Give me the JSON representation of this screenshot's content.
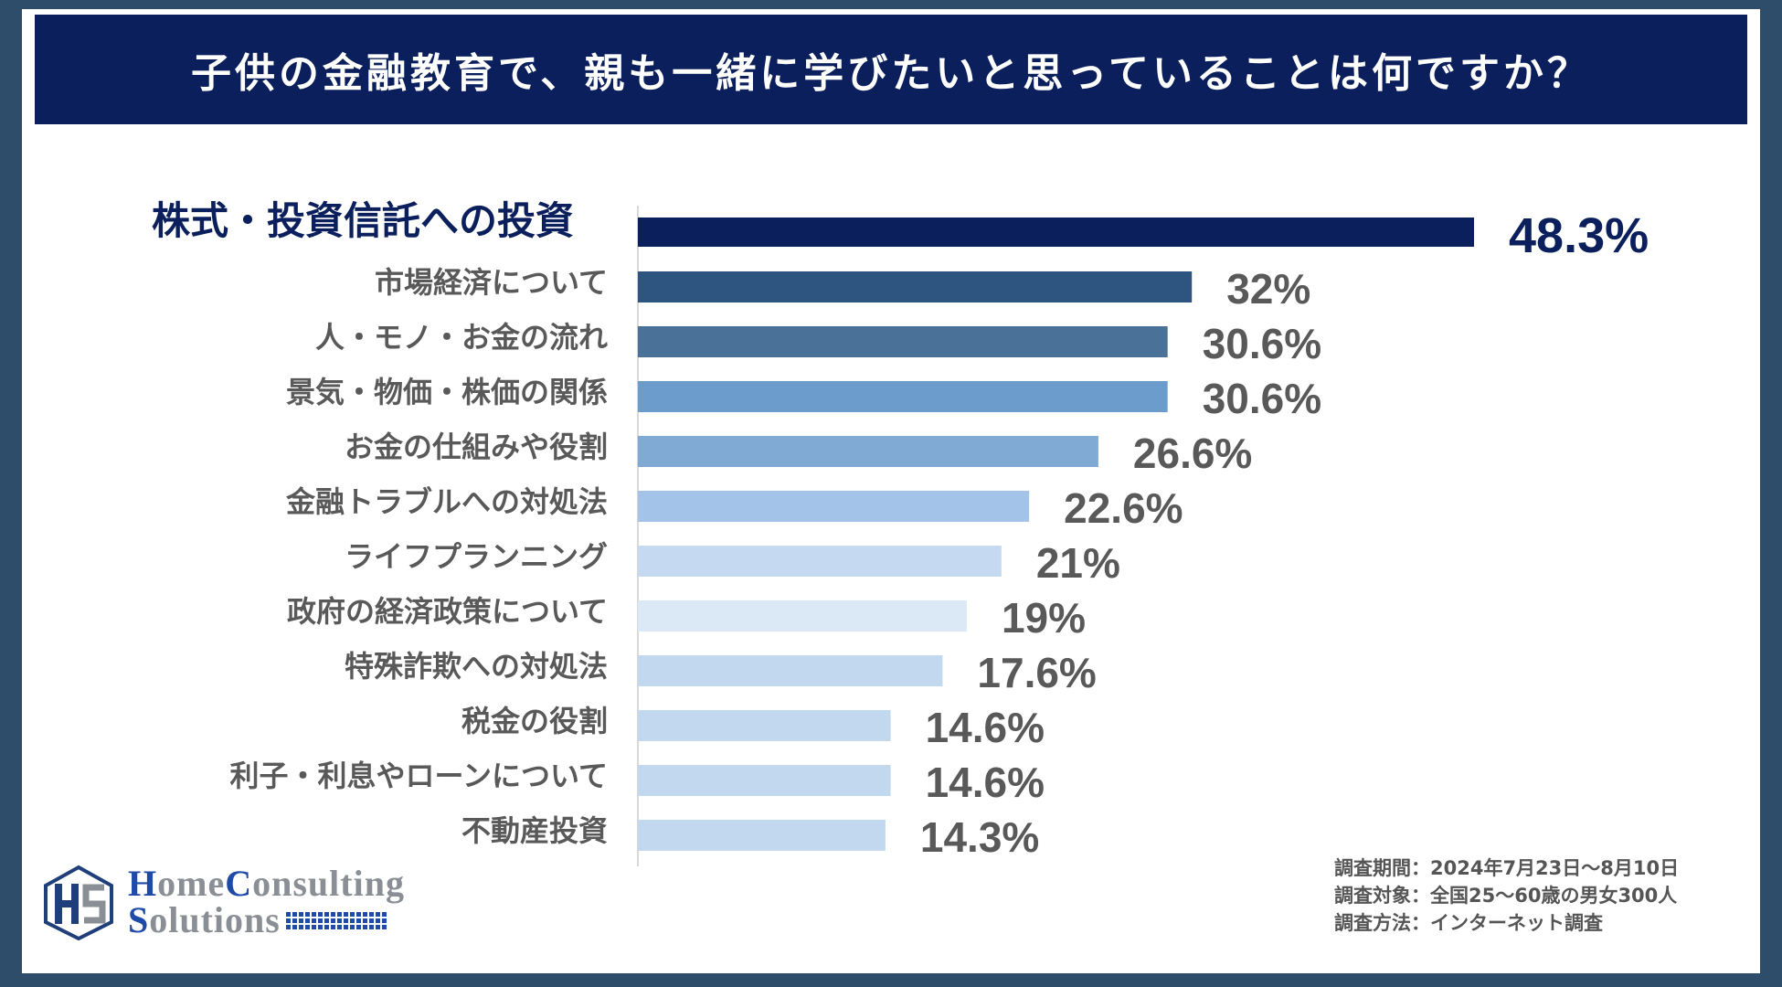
{
  "title": "子供の金融教育で、親も一緒に学びたいと思っていることは何ですか？",
  "chart_data": {
    "type": "bar",
    "orientation": "horizontal",
    "title": "子供の金融教育で、親も一緒に学びたいと思っていることは何ですか？",
    "unit": "%",
    "xlim": [
      0,
      50
    ],
    "categories": [
      "株式・投資信託への投資",
      "市場経済について",
      "人・モノ・お金の流れ",
      "景気・物価・株価の関係",
      "お金の仕組みや役割",
      "金融トラブルへの対処法",
      "ライフプランニング",
      "政府の経済政策について",
      "特殊詐欺への対処法",
      "税金の役割",
      "利子・利息やローンについて",
      "不動産投資"
    ],
    "values": [
      48.3,
      32,
      30.6,
      30.6,
      26.6,
      22.6,
      21,
      19,
      17.6,
      14.6,
      14.6,
      14.3
    ],
    "value_labels": [
      "48.3%",
      "32%",
      "30.6%",
      "30.6%",
      "26.6%",
      "22.6%",
      "21%",
      "19%",
      "17.6%",
      "14.6%",
      "14.6%",
      "14.3%"
    ],
    "bar_colors": [
      "#0b1f5c",
      "#2e5580",
      "#4a7198",
      "#6b9ccc",
      "#80a9d4",
      "#a3c4e8",
      "#c5daf0",
      "#dbe8f6",
      "#c2d8ef",
      "#c2d8ef",
      "#c2d8ef",
      "#c2d8ef"
    ]
  },
  "logo": {
    "line1_cap1": "H",
    "line1_rest1": "ome",
    "line1_cap2": "C",
    "line1_rest2": "onsulting",
    "line2_cap": "S",
    "line2_rest": "olutions"
  },
  "survey_notes": [
    "調査期間：2024年7月23日～8月10日",
    "調査対象：全国25～60歳の男女300人",
    "調査方法：インターネット調査"
  ]
}
